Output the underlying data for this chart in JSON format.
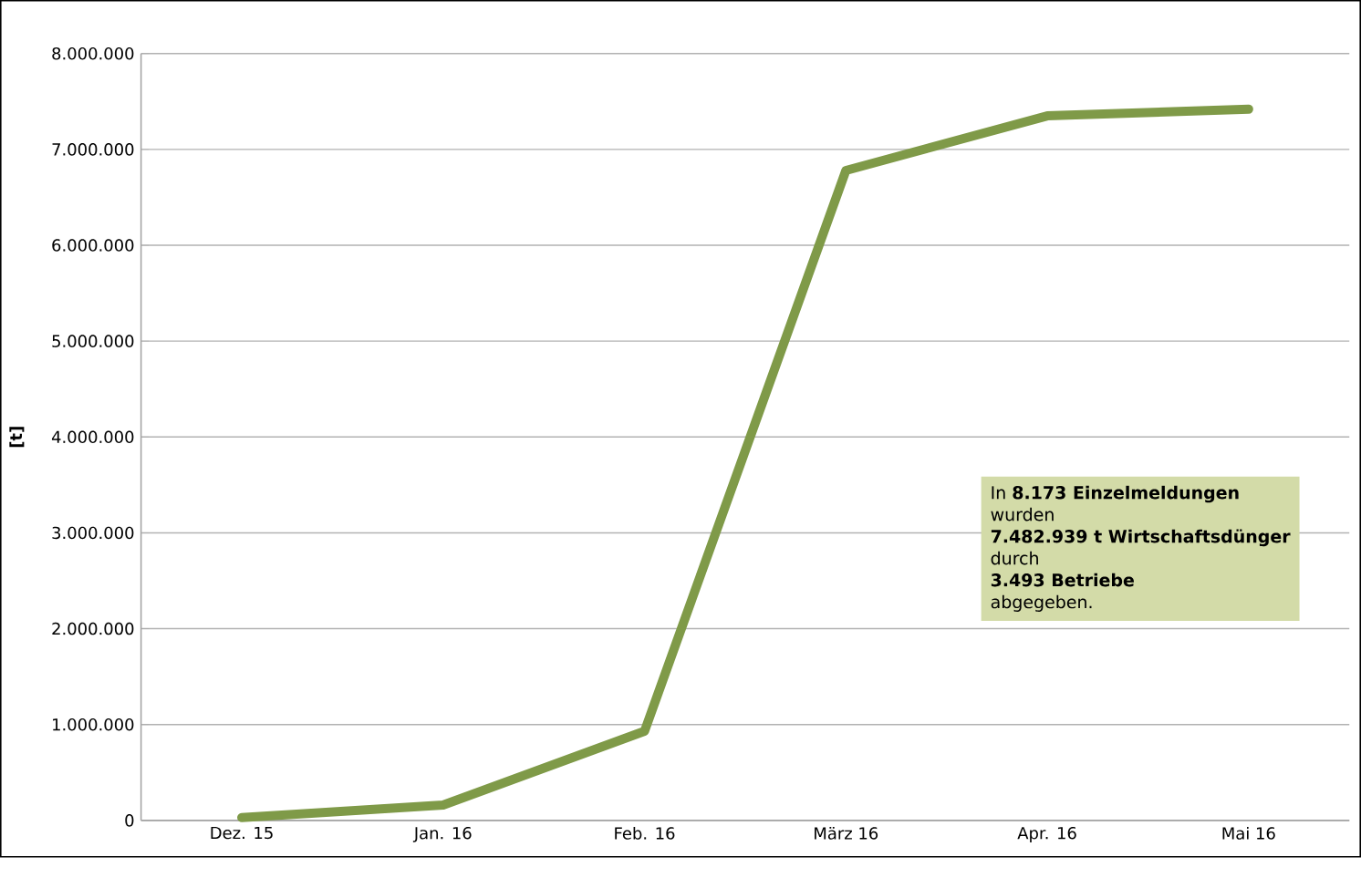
{
  "chart_data": {
    "type": "line",
    "ylabel": "[t]",
    "categories": [
      "Dez. 15",
      "Jan. 16",
      "Feb. 16",
      "März 16",
      "Apr. 16",
      "Mai 16"
    ],
    "series": [
      {
        "color": "#7f9a48",
        "values": [
          30000,
          160000,
          930000,
          6780000,
          7350000,
          7420000
        ]
      }
    ],
    "ylim": [
      0,
      8000000
    ],
    "yticks": [
      {
        "value": 0,
        "label": "0"
      },
      {
        "value": 1000000,
        "label": "1.000.000"
      },
      {
        "value": 2000000,
        "label": "2.000.000"
      },
      {
        "value": 3000000,
        "label": "3.000.000"
      },
      {
        "value": 4000000,
        "label": "4.000.000"
      },
      {
        "value": 5000000,
        "label": "5.000.000"
      },
      {
        "value": 6000000,
        "label": "6.000.000"
      },
      {
        "value": 7000000,
        "label": "7.000.000"
      },
      {
        "value": 8000000,
        "label": "8.000.000"
      }
    ],
    "grid": "y",
    "marker": "none",
    "line_style": "solid",
    "annotations": [
      "In **8.173 Einzelmeldungen**",
      "wurden",
      "**7.482.939 t Wirtschaftsdünger**",
      "durch",
      "**3.493 Betriebe**",
      "abgegeben."
    ]
  }
}
